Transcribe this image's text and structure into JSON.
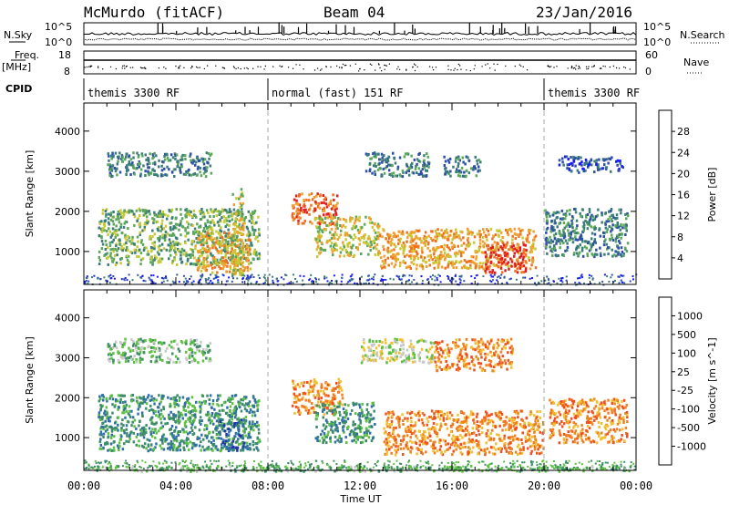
{
  "header": {
    "station": "McMurdo (fitACF)",
    "beam": "Beam 04",
    "date": "23/Jan/2016"
  },
  "side_labels": {
    "nsky": "N.Sky",
    "freq": "Freq.",
    "freq_unit": "[MHz]",
    "cpid": "CPID",
    "nsearch": "N.Search",
    "nave": "Nave",
    "nsky_ticks": [
      "10^5",
      "10^0"
    ],
    "nsearch_ticks": [
      "10^5",
      "10^0"
    ],
    "freq_ticks": [
      "18",
      "8"
    ],
    "nave_ticks": [
      "60",
      "0"
    ]
  },
  "cpid_segments": [
    {
      "label": "themis 3300 RF",
      "start_hour": 0,
      "end_hour": 8
    },
    {
      "label": "normal (fast) 151 RF",
      "start_hour": 8,
      "end_hour": 20
    },
    {
      "label": "themis 3300 RF",
      "start_hour": 20,
      "end_hour": 24
    }
  ],
  "chart_data": [
    {
      "type": "heatmap",
      "name": "power-panel",
      "xlabel": "Time UT",
      "ylabel": "Slant Range [km]",
      "x_tick_labels": [
        "00:00",
        "04:00",
        "08:00",
        "12:00",
        "16:00",
        "20:00",
        "00:00"
      ],
      "x_range_hours": [
        0,
        24
      ],
      "ylim": [
        180,
        4700
      ],
      "y_ticks": [
        1000,
        2000,
        3000,
        4000
      ],
      "colorbar": {
        "label": "Power [dB]",
        "ticks": [
          4,
          8,
          12,
          16,
          20,
          24,
          28
        ],
        "colors": [
          "#1a1aff",
          "#2e4fa8",
          "#3b7d7a",
          "#5ca85a",
          "#c8c832",
          "#f0a030",
          "#f07020",
          "#e02020"
        ]
      },
      "echo_regions": [
        {
          "t0": 0.6,
          "t1": 7.6,
          "r0": 700,
          "r1": 2100,
          "level": 3
        },
        {
          "t0": 4.8,
          "t1": 7.2,
          "r0": 500,
          "r1": 1500,
          "level": 5
        },
        {
          "t0": 6.4,
          "t1": 6.9,
          "r0": 400,
          "r1": 2600,
          "level": 4
        },
        {
          "t0": 1.0,
          "t1": 5.5,
          "r0": 2900,
          "r1": 3500,
          "level": 2
        },
        {
          "t0": 9.0,
          "t1": 11.0,
          "r0": 1700,
          "r1": 2500,
          "level": 6
        },
        {
          "t0": 10.0,
          "t1": 12.8,
          "r0": 900,
          "r1": 1900,
          "level": 4
        },
        {
          "t0": 12.2,
          "t1": 15.0,
          "r0": 2900,
          "r1": 3500,
          "level": 2
        },
        {
          "t0": 12.8,
          "t1": 19.6,
          "r0": 600,
          "r1": 1600,
          "level": 5
        },
        {
          "t0": 17.4,
          "t1": 19.2,
          "r0": 500,
          "r1": 1200,
          "level": 7
        },
        {
          "t0": 15.6,
          "t1": 17.2,
          "r0": 2900,
          "r1": 3400,
          "level": 2
        },
        {
          "t0": 20.0,
          "t1": 23.6,
          "r0": 900,
          "r1": 2100,
          "level": 2
        },
        {
          "t0": 20.6,
          "t1": 23.4,
          "r0": 3000,
          "r1": 3400,
          "level": 1
        }
      ]
    },
    {
      "type": "heatmap",
      "name": "velocity-panel",
      "xlabel": "Time UT",
      "ylabel": "Slant Range [km]",
      "x_tick_labels": [
        "00:00",
        "04:00",
        "08:00",
        "12:00",
        "16:00",
        "20:00",
        "00:00"
      ],
      "x_range_hours": [
        0,
        24
      ],
      "ylim": [
        180,
        4700
      ],
      "y_ticks": [
        1000,
        2000,
        3000,
        4000
      ],
      "colorbar": {
        "label": "Velocity [m s^-1]",
        "ticks": [
          1000,
          500,
          100,
          25,
          -25,
          -100,
          -500,
          -1000
        ],
        "colors": [
          "#2233aa",
          "#2e6fa8",
          "#3d8c6a",
          "#5cc040",
          "#c8c8c8",
          "#f0c030",
          "#f08020",
          "#f05020",
          "#e01010"
        ]
      },
      "echo_regions": [
        {
          "t0": 0.6,
          "t1": 7.6,
          "r0": 700,
          "r1": 2100,
          "level": 2
        },
        {
          "t0": 5.8,
          "t1": 7.0,
          "r0": 700,
          "r1": 1500,
          "level": 1
        },
        {
          "t0": 1.0,
          "t1": 5.5,
          "r0": 2900,
          "r1": 3500,
          "level": 3
        },
        {
          "t0": 9.0,
          "t1": 11.2,
          "r0": 1600,
          "r1": 2500,
          "level": 6
        },
        {
          "t0": 10.0,
          "t1": 12.6,
          "r0": 900,
          "r1": 1900,
          "level": 2
        },
        {
          "t0": 12.0,
          "t1": 15.2,
          "r0": 2900,
          "r1": 3500,
          "level": 4
        },
        {
          "t0": 13.0,
          "t1": 20.0,
          "r0": 600,
          "r1": 1700,
          "level": 6
        },
        {
          "t0": 15.2,
          "t1": 18.6,
          "r0": 2700,
          "r1": 3500,
          "level": 6
        },
        {
          "t0": 20.2,
          "t1": 23.6,
          "r0": 900,
          "r1": 2000,
          "level": 6
        },
        {
          "t0": 0.0,
          "t1": 24.0,
          "r0": 180,
          "r1": 320,
          "level": 3
        }
      ]
    }
  ]
}
